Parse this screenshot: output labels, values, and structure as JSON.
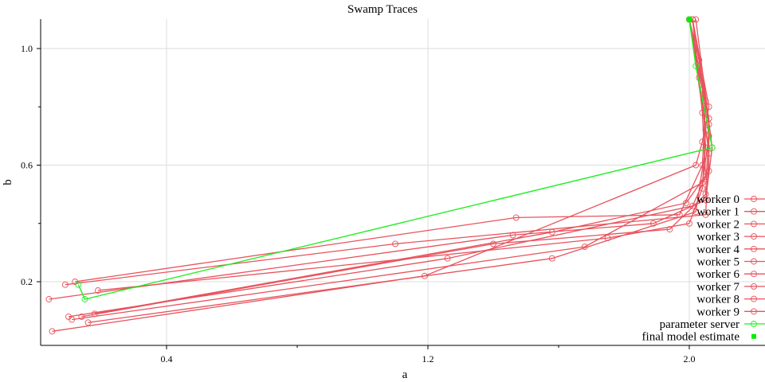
{
  "chart_data": {
    "type": "scatter",
    "title": "Swamp Traces",
    "xlabel": "a",
    "ylabel": "b",
    "xlim": [
      0.04,
      2.25
    ],
    "ylim": [
      -0.02,
      1.12
    ],
    "x_ticks": [
      {
        "value": 0.4,
        "label": "0.4"
      },
      {
        "value": 1.2,
        "label": "1.2"
      },
      {
        "value": 2.0,
        "label": "2.0"
      }
    ],
    "x_minor_ticks": [
      0.8,
      1.6
    ],
    "y_ticks": [
      {
        "value": 0.2,
        "label": "0.2"
      },
      {
        "value": 0.6,
        "label": "0.6"
      },
      {
        "value": 1.0,
        "label": "1.0"
      }
    ],
    "grid": true,
    "legend_position": "right",
    "colors": {
      "workers": "#e8525c",
      "parameter_server": "#22ee22",
      "final_model_estimate": "#00ee00",
      "grid": "#dddddd",
      "axis": "#000000"
    },
    "series": [
      {
        "name": "worker 0",
        "points": [
          [
            0.05,
            0.03
          ],
          [
            1.19,
            0.22
          ],
          [
            2.02,
            0.6
          ],
          [
            2.04,
            0.68
          ],
          [
            2.06,
            0.8
          ],
          [
            2.01,
            1.1
          ]
        ]
      },
      {
        "name": "worker 1",
        "points": [
          [
            0.09,
            0.19
          ],
          [
            1.1,
            0.33
          ],
          [
            2.05,
            0.43
          ],
          [
            2.06,
            0.64
          ],
          [
            2.03,
            0.9
          ],
          [
            2.0,
            1.1
          ]
        ]
      },
      {
        "name": "worker 2",
        "points": [
          [
            0.1,
            0.08
          ],
          [
            1.26,
            0.28
          ],
          [
            2.01,
            0.46
          ],
          [
            2.05,
            0.56
          ],
          [
            2.04,
            0.78
          ],
          [
            2.01,
            1.1
          ]
        ]
      },
      {
        "name": "worker 3",
        "points": [
          [
            0.11,
            0.07
          ],
          [
            1.68,
            0.32
          ],
          [
            2.04,
            0.54
          ],
          [
            2.06,
            0.7
          ],
          [
            2.03,
            0.96
          ],
          [
            2.0,
            1.1
          ]
        ]
      },
      {
        "name": "worker 4",
        "points": [
          [
            0.12,
            0.2
          ],
          [
            1.47,
            0.42
          ],
          [
            1.97,
            0.43
          ],
          [
            2.04,
            0.6
          ],
          [
            2.05,
            0.82
          ],
          [
            2.0,
            1.1
          ]
        ]
      },
      {
        "name": "worker 5",
        "points": [
          [
            0.14,
            0.08
          ],
          [
            1.4,
            0.33
          ],
          [
            1.94,
            0.38
          ],
          [
            2.05,
            0.5
          ],
          [
            2.06,
            0.74
          ],
          [
            2.01,
            1.1
          ]
        ]
      },
      {
        "name": "worker 6",
        "points": [
          [
            0.16,
            0.06
          ],
          [
            1.58,
            0.28
          ],
          [
            2.02,
            0.44
          ],
          [
            2.05,
            0.66
          ],
          [
            2.04,
            0.86
          ],
          [
            2.0,
            1.1
          ]
        ]
      },
      {
        "name": "worker 7",
        "points": [
          [
            0.04,
            0.14
          ],
          [
            1.46,
            0.36
          ],
          [
            1.89,
            0.4
          ],
          [
            2.05,
            0.48
          ],
          [
            2.07,
            0.66
          ],
          [
            2.02,
            1.1
          ]
        ]
      },
      {
        "name": "worker 8",
        "points": [
          [
            0.18,
            0.09
          ],
          [
            1.58,
            0.37
          ],
          [
            1.99,
            0.47
          ],
          [
            2.06,
            0.58
          ],
          [
            2.06,
            0.76
          ],
          [
            2.01,
            1.1
          ]
        ]
      },
      {
        "name": "worker 9",
        "points": [
          [
            0.19,
            0.17
          ],
          [
            1.75,
            0.35
          ],
          [
            2.0,
            0.4
          ],
          [
            2.04,
            0.52
          ],
          [
            2.05,
            0.72
          ],
          [
            2.0,
            1.1
          ]
        ]
      }
    ],
    "parameter_server": {
      "name": "parameter server",
      "points": [
        [
          0.13,
          0.19
        ],
        [
          0.15,
          0.14
        ],
        [
          2.07,
          0.66
        ],
        [
          2.02,
          0.94
        ],
        [
          2.0,
          1.1
        ]
      ]
    },
    "final_model_estimate": {
      "name": "final model estimate",
      "points": [
        [
          2.0,
          1.1
        ]
      ]
    }
  }
}
